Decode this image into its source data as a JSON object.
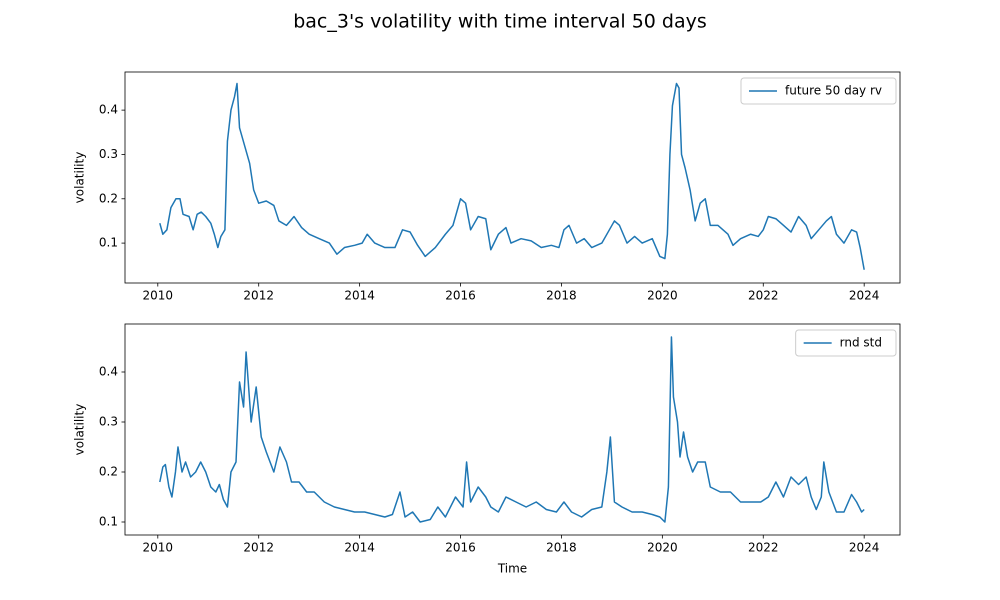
{
  "title": "bac_3's volatility with time interval 50 days",
  "chart_data": [
    {
      "type": "line",
      "ylabel": "volatility",
      "legend": "upper right",
      "xlim": [
        2009.35,
        2024.71
      ],
      "ylim": [
        0.01,
        0.486
      ],
      "xticks": [
        2010,
        2012,
        2014,
        2016,
        2018,
        2020,
        2022,
        2024
      ],
      "yticks": [
        0.1,
        0.2,
        0.3,
        0.4
      ],
      "x": [
        2010.04,
        2010.1,
        2010.18,
        2010.26,
        2010.36,
        2010.44,
        2010.5,
        2010.62,
        2010.7,
        2010.78,
        2010.86,
        2010.95,
        2011.05,
        2011.12,
        2011.19,
        2011.25,
        2011.33,
        2011.38,
        2011.45,
        2011.52,
        2011.57,
        2011.62,
        2011.72,
        2011.82,
        2011.9,
        2012.0,
        2012.15,
        2012.3,
        2012.4,
        2012.55,
        2012.7,
        2012.85,
        2013.0,
        2013.2,
        2013.4,
        2013.55,
        2013.7,
        2013.9,
        2014.05,
        2014.15,
        2014.3,
        2014.5,
        2014.7,
        2014.85,
        2015.0,
        2015.15,
        2015.3,
        2015.5,
        2015.7,
        2015.85,
        2015.95,
        2016.0,
        2016.1,
        2016.2,
        2016.35,
        2016.5,
        2016.6,
        2016.75,
        2016.9,
        2017.0,
        2017.2,
        2017.4,
        2017.6,
        2017.8,
        2017.95,
        2018.05,
        2018.15,
        2018.3,
        2018.45,
        2018.6,
        2018.8,
        2018.95,
        2019.05,
        2019.15,
        2019.3,
        2019.45,
        2019.6,
        2019.8,
        2019.95,
        2020.05,
        2020.1,
        2020.15,
        2020.2,
        2020.28,
        2020.33,
        2020.38,
        2020.45,
        2020.55,
        2020.65,
        2020.75,
        2020.85,
        2020.95,
        2021.1,
        2021.3,
        2021.4,
        2021.55,
        2021.75,
        2021.9,
        2022.0,
        2022.1,
        2022.25,
        2022.4,
        2022.55,
        2022.7,
        2022.85,
        2022.95,
        2023.1,
        2023.25,
        2023.35,
        2023.45,
        2023.6,
        2023.75,
        2023.85,
        2023.92,
        2024.0
      ],
      "series": [
        {
          "name": "future 50 day rv",
          "color": "#1f77b4",
          "values": [
            0.145,
            0.12,
            0.13,
            0.18,
            0.2,
            0.2,
            0.165,
            0.16,
            0.13,
            0.165,
            0.17,
            0.16,
            0.145,
            0.12,
            0.09,
            0.115,
            0.13,
            0.33,
            0.4,
            0.43,
            0.46,
            0.36,
            0.32,
            0.28,
            0.22,
            0.19,
            0.195,
            0.185,
            0.15,
            0.14,
            0.16,
            0.135,
            0.12,
            0.11,
            0.1,
            0.075,
            0.09,
            0.095,
            0.1,
            0.12,
            0.1,
            0.09,
            0.09,
            0.13,
            0.125,
            0.095,
            0.07,
            0.09,
            0.12,
            0.14,
            0.18,
            0.2,
            0.19,
            0.13,
            0.16,
            0.155,
            0.085,
            0.12,
            0.135,
            0.1,
            0.11,
            0.105,
            0.09,
            0.095,
            0.09,
            0.13,
            0.14,
            0.1,
            0.11,
            0.09,
            0.1,
            0.13,
            0.15,
            0.14,
            0.1,
            0.115,
            0.1,
            0.11,
            0.07,
            0.065,
            0.12,
            0.3,
            0.41,
            0.46,
            0.45,
            0.3,
            0.27,
            0.22,
            0.15,
            0.19,
            0.2,
            0.14,
            0.14,
            0.12,
            0.095,
            0.11,
            0.12,
            0.115,
            0.13,
            0.16,
            0.155,
            0.14,
            0.125,
            0.16,
            0.14,
            0.11,
            0.13,
            0.15,
            0.16,
            0.12,
            0.1,
            0.13,
            0.125,
            0.09,
            0.04
          ]
        }
      ]
    },
    {
      "type": "line",
      "ylabel": "volatility",
      "xlabel": "Time",
      "legend": "upper right",
      "xlim": [
        2009.35,
        2024.71
      ],
      "ylim": [
        0.074,
        0.496
      ],
      "xticks": [
        2010,
        2012,
        2014,
        2016,
        2018,
        2020,
        2022,
        2024
      ],
      "yticks": [
        0.1,
        0.2,
        0.3,
        0.4
      ],
      "x": [
        2010.04,
        2010.1,
        2010.15,
        2010.22,
        2010.28,
        2010.35,
        2010.4,
        2010.48,
        2010.55,
        2010.65,
        2010.75,
        2010.85,
        2010.95,
        2011.05,
        2011.15,
        2011.22,
        2011.3,
        2011.38,
        2011.45,
        2011.55,
        2011.62,
        2011.7,
        2011.75,
        2011.85,
        2011.95,
        2012.05,
        2012.15,
        2012.3,
        2012.42,
        2012.55,
        2012.65,
        2012.8,
        2012.95,
        2013.1,
        2013.3,
        2013.5,
        2013.7,
        2013.9,
        2014.1,
        2014.3,
        2014.5,
        2014.65,
        2014.8,
        2014.9,
        2015.05,
        2015.2,
        2015.4,
        2015.55,
        2015.7,
        2015.9,
        2016.05,
        2016.12,
        2016.2,
        2016.35,
        2016.5,
        2016.6,
        2016.75,
        2016.9,
        2017.1,
        2017.3,
        2017.5,
        2017.7,
        2017.9,
        2018.05,
        2018.2,
        2018.4,
        2018.6,
        2018.8,
        2018.9,
        2018.97,
        2019.05,
        2019.2,
        2019.4,
        2019.6,
        2019.8,
        2019.95,
        2020.05,
        2020.12,
        2020.18,
        2020.22,
        2020.3,
        2020.35,
        2020.42,
        2020.5,
        2020.6,
        2020.7,
        2020.85,
        2020.95,
        2021.15,
        2021.35,
        2021.55,
        2021.75,
        2021.95,
        2022.1,
        2022.25,
        2022.4,
        2022.55,
        2022.7,
        2022.85,
        2022.95,
        2023.05,
        2023.15,
        2023.2,
        2023.3,
        2023.45,
        2023.6,
        2023.75,
        2023.85,
        2023.95,
        2024.0
      ],
      "series": [
        {
          "name": "rnd std",
          "color": "#1f77b4",
          "values": [
            0.18,
            0.21,
            0.215,
            0.17,
            0.15,
            0.2,
            0.25,
            0.2,
            0.22,
            0.19,
            0.2,
            0.22,
            0.2,
            0.17,
            0.16,
            0.175,
            0.145,
            0.13,
            0.2,
            0.22,
            0.38,
            0.33,
            0.44,
            0.3,
            0.37,
            0.27,
            0.24,
            0.2,
            0.25,
            0.22,
            0.18,
            0.18,
            0.16,
            0.16,
            0.14,
            0.13,
            0.125,
            0.12,
            0.12,
            0.115,
            0.11,
            0.115,
            0.16,
            0.11,
            0.12,
            0.1,
            0.105,
            0.13,
            0.11,
            0.15,
            0.13,
            0.22,
            0.14,
            0.17,
            0.15,
            0.13,
            0.12,
            0.15,
            0.14,
            0.13,
            0.14,
            0.125,
            0.12,
            0.14,
            0.12,
            0.11,
            0.125,
            0.13,
            0.2,
            0.27,
            0.14,
            0.13,
            0.12,
            0.12,
            0.115,
            0.11,
            0.1,
            0.17,
            0.47,
            0.35,
            0.3,
            0.23,
            0.28,
            0.23,
            0.2,
            0.22,
            0.22,
            0.17,
            0.16,
            0.16,
            0.14,
            0.14,
            0.14,
            0.15,
            0.18,
            0.15,
            0.19,
            0.175,
            0.19,
            0.15,
            0.125,
            0.15,
            0.22,
            0.16,
            0.12,
            0.12,
            0.155,
            0.14,
            0.12,
            0.125
          ]
        }
      ]
    }
  ]
}
